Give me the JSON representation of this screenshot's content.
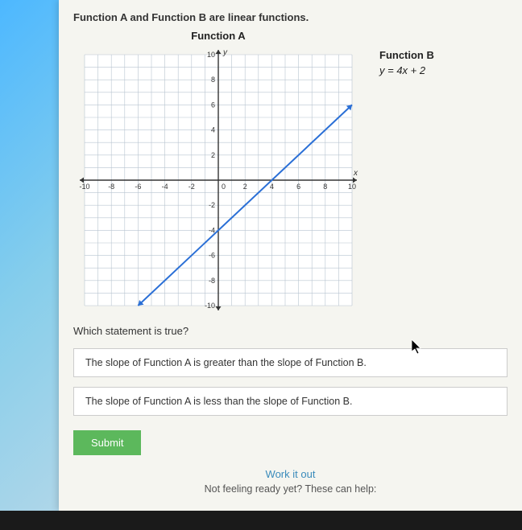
{
  "prompt": "Function A and Function B are linear functions.",
  "functionA": {
    "title": "Function A",
    "chart": {
      "type": "line",
      "xlim": [
        -10,
        10
      ],
      "ylim": [
        -10,
        10
      ],
      "tick_step": 2,
      "x_tick_labels": [
        "-10",
        "-8",
        "-6",
        "-4",
        "-2",
        "0",
        "2",
        "4",
        "6",
        "8",
        "10"
      ],
      "y_tick_labels_pos": [
        "2",
        "4",
        "6",
        "8",
        "10"
      ],
      "y_tick_labels_neg": [
        "-2",
        "-4",
        "-6",
        "-8",
        "-10"
      ],
      "grid_step": 1,
      "grid_color": "#b8c4d0",
      "axis_color": "#333333",
      "line_color": "#2a6fd6",
      "line_width": 2,
      "arrow_size": 5,
      "background": "#ffffff",
      "label_fontsize": 9,
      "line_points": [
        [
          -6,
          -10
        ],
        [
          10,
          6
        ]
      ],
      "axis_labels": {
        "x": "x",
        "y": "y"
      }
    }
  },
  "functionB": {
    "title": "Function B",
    "equation_html": "y = 4x + 2"
  },
  "question": "Which statement is true?",
  "answers": [
    "The slope of Function A is greater than the slope of Function B.",
    "The slope of Function A is less than the slope of Function B."
  ],
  "submit_label": "Submit",
  "work_it_out": "Work it out",
  "not_ready": "Not feeling ready yet? These can help:",
  "colors": {
    "page_bg": "#f5f5f0",
    "answer_bg": "#ffffff",
    "answer_border": "#cccccc",
    "submit_bg": "#5cb85c",
    "link": "#3a8bbb"
  }
}
